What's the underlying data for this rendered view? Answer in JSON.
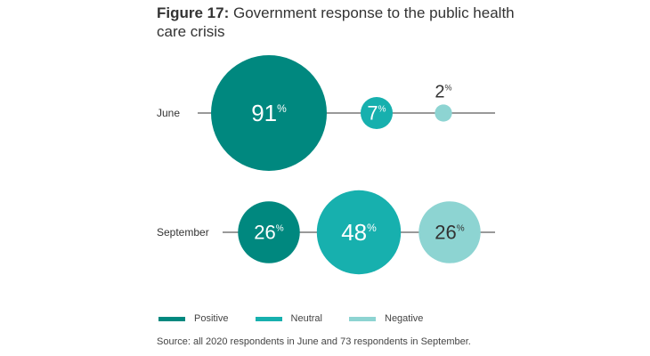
{
  "chart_data": {
    "type": "bubble",
    "title_prefix": "Figure 17:",
    "title": "Government response to the public health care crisis",
    "percent_symbol": "%",
    "categories": [
      "Positive",
      "Neutral",
      "Negative"
    ],
    "colors": {
      "Positive": "#00887f",
      "Neutral": "#17b0ae",
      "Negative": "#8dd4d2"
    },
    "rows": [
      {
        "label": "June",
        "values": [
          91,
          7,
          2
        ]
      },
      {
        "label": "September",
        "values": [
          26,
          48,
          26
        ]
      }
    ],
    "source": "Source: all 2020 respondents in June and 73 respondents in September."
  }
}
